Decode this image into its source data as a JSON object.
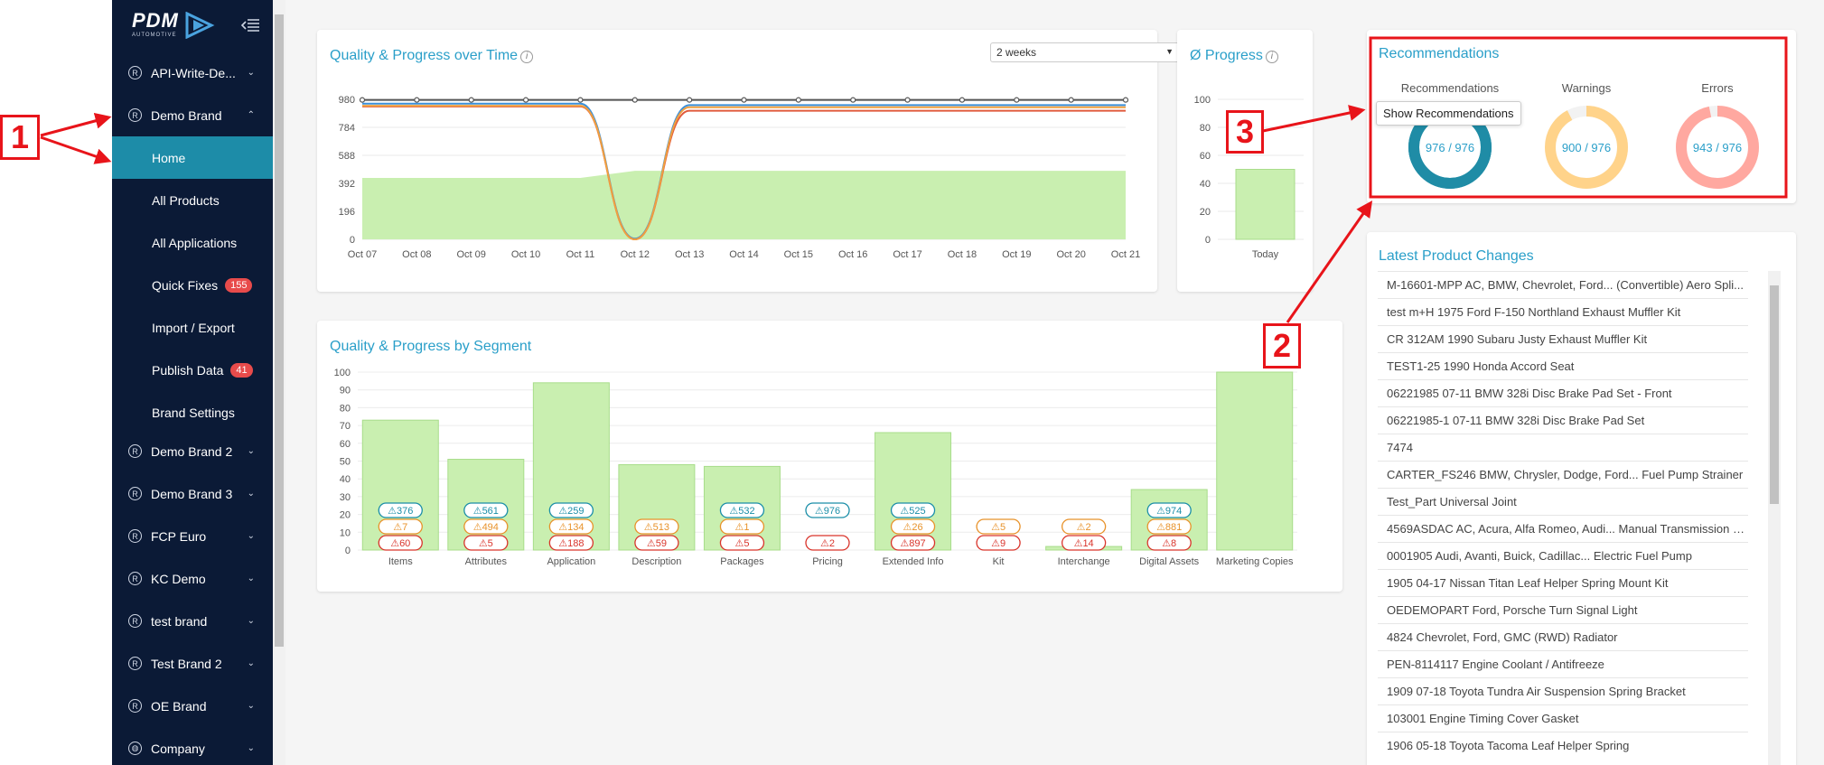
{
  "sidebar": {
    "logo": "PDM",
    "logo_sub": "AUTOMOTIVE",
    "brands": [
      {
        "label": "API-Write-De..."
      },
      {
        "label": "Demo Brand"
      },
      {
        "label": "Demo Brand 2"
      },
      {
        "label": "Demo Brand 3"
      },
      {
        "label": "FCP Euro"
      },
      {
        "label": "KC Demo"
      },
      {
        "label": "test brand"
      },
      {
        "label": "Test Brand 2"
      },
      {
        "label": "OE Brand"
      },
      {
        "label": "Company"
      }
    ],
    "sub_items": [
      {
        "label": "Home"
      },
      {
        "label": "All Products"
      },
      {
        "label": "All Applications"
      },
      {
        "label": "Quick Fixes",
        "badge": "155"
      },
      {
        "label": "Import / Export"
      },
      {
        "label": "Publish Data",
        "badge": "41"
      },
      {
        "label": "Brand Settings"
      }
    ]
  },
  "quality_time": {
    "title": "Quality & Progress over Time",
    "dropdown_value": "2 weeks",
    "chart_data": {
      "type": "line",
      "x": [
        "Oct 07",
        "Oct 08",
        "Oct 09",
        "Oct 10",
        "Oct 11",
        "Oct 12",
        "Oct 13",
        "Oct 14",
        "Oct 15",
        "Oct 16",
        "Oct 17",
        "Oct 18",
        "Oct 19",
        "Oct 20",
        "Oct 21"
      ],
      "y_ticks": [
        0,
        196,
        392,
        588,
        784,
        980
      ],
      "ylim": [
        0,
        980
      ],
      "series": [
        {
          "values": [
            976,
            976,
            976,
            976,
            976,
            976,
            976,
            976,
            976,
            976,
            976,
            976,
            976,
            976,
            976
          ],
          "color": "#555555"
        },
        {
          "values": [
            950,
            950,
            950,
            950,
            950,
            5,
            940,
            940,
            940,
            940,
            940,
            940,
            940,
            940,
            940
          ],
          "color": "#3a8fd9"
        },
        {
          "values": [
            930,
            930,
            930,
            930,
            930,
            0,
            900,
            900,
            900,
            900,
            900,
            900,
            900,
            900,
            900
          ],
          "color": "#e15a3c"
        },
        {
          "values": [
            935,
            935,
            935,
            935,
            935,
            0,
            925,
            925,
            925,
            925,
            925,
            925,
            925,
            925,
            925
          ],
          "color": "#f0a040"
        },
        {
          "values": [
            430,
            430,
            430,
            430,
            430,
            480,
            480,
            480,
            480,
            480,
            480,
            480,
            480,
            480,
            480
          ],
          "color": "#c9efb0",
          "type": "area"
        }
      ]
    }
  },
  "progress": {
    "title": "Ø Progress",
    "chart_data": {
      "type": "bar",
      "categories": [
        "Today"
      ],
      "values": [
        50
      ],
      "y_ticks": [
        0,
        20,
        40,
        60,
        80,
        100
      ],
      "ylim": [
        0,
        100
      ]
    }
  },
  "segment": {
    "title": "Quality & Progress by Segment",
    "chart_data": {
      "type": "bar",
      "categories": [
        "Items",
        "Attributes",
        "Application",
        "Description",
        "Packages",
        "Pricing",
        "Extended Info",
        "Kit",
        "Interchange",
        "Digital Assets",
        "Marketing Copies"
      ],
      "values": [
        73,
        51,
        94,
        48,
        47,
        0,
        66,
        0,
        2,
        34,
        100
      ],
      "y_ticks": [
        0,
        10,
        20,
        30,
        40,
        50,
        60,
        70,
        80,
        90,
        100
      ],
      "ylim": [
        0,
        100
      ],
      "recommendations": [
        "376",
        "561",
        "259",
        "",
        "532",
        "976",
        "525",
        "",
        "",
        "974",
        ""
      ],
      "warnings": [
        "7",
        "494",
        "134",
        "513",
        "1",
        "",
        "26",
        "5",
        "2",
        "881",
        ""
      ],
      "errors": [
        "60",
        "5",
        "188",
        "59",
        "5",
        "2",
        "897",
        "9",
        "14",
        "8",
        ""
      ]
    }
  },
  "recommendations": {
    "title": "Recommendations",
    "cols": [
      {
        "label": "Recommendations",
        "text": "976 / 976",
        "value": 976,
        "total": 976,
        "color": "#1f8ca6",
        "bg": "#1f8ca6"
      },
      {
        "label": "Warnings",
        "text": "900 / 976",
        "value": 900,
        "total": 976,
        "color": "#ffd38a",
        "bg": "#f2f2f2"
      },
      {
        "label": "Errors",
        "text": "943 / 976",
        "value": 943,
        "total": 976,
        "color": "#ffa8a0",
        "bg": "#f2f2f2"
      }
    ],
    "tooltip": "Show Recommendations"
  },
  "latest": {
    "title": "Latest Product Changes",
    "items": [
      "M-16601-MPP AC, BMW, Chevrolet, Ford... (Convertible) Aero Spli...",
      "test m+H 1975 Ford F-150 Northland Exhaust Muffler Kit",
      "CR 312AM 1990 Subaru Justy Exhaust Muffler Kit",
      "TEST1-25 1990 Honda Accord Seat",
      "06221985 07-11 BMW 328i Disc Brake Pad Set - Front",
      "06221985-1 07-11 BMW 328i Disc Brake Pad Set",
      "7474",
      "CARTER_FS246 BMW, Chrysler, Dodge, Ford... Fuel Pump Strainer",
      "Test_Part Universal Joint",
      "4569ASDAC AC, Acura, Alfa Romeo, Audi... Manual Transmission S...",
      "0001905 Audi, Avanti, Buick, Cadillac... Electric Fuel Pump",
      "1905 04-17 Nissan Titan Leaf Helper Spring Mount Kit",
      "OEDEMOPART Ford, Porsche Turn Signal Light",
      "4824 Chevrolet, Ford, GMC (RWD) Radiator",
      "PEN-8114117 Engine Coolant / Antifreeze",
      "1909 07-18 Toyota Tundra Air Suspension Spring Bracket",
      "103001 Engine Timing Cover Gasket",
      "1906 05-18 Toyota Tacoma Leaf Helper Spring"
    ]
  },
  "callouts": {
    "one": "1",
    "two": "2",
    "three": "3"
  }
}
